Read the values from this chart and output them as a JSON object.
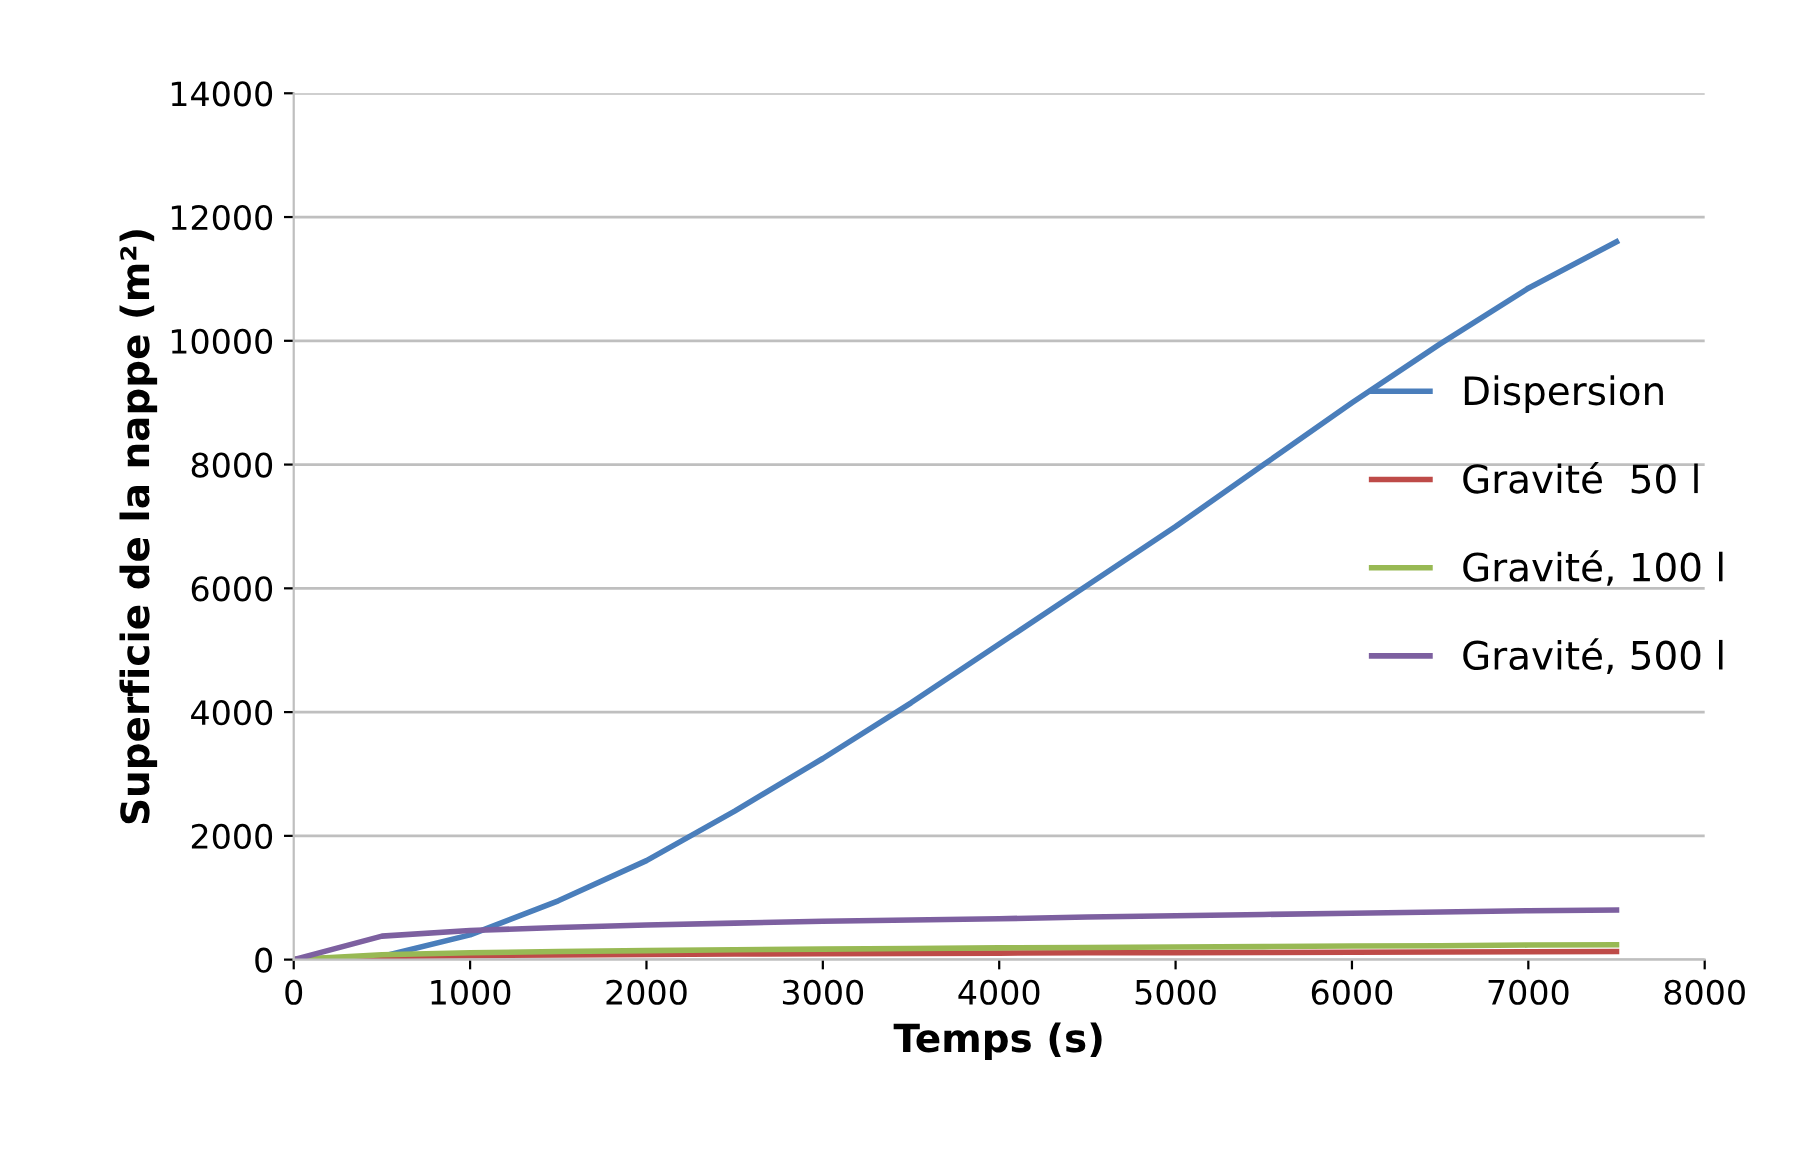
{
  "chart_data": {
    "type": "line",
    "xlabel": "Temps (s)",
    "ylabel": "Superficie de la nappe (m²)",
    "x": [
      0,
      500,
      1000,
      1500,
      2000,
      2500,
      3000,
      3500,
      4000,
      4500,
      5000,
      5500,
      6000,
      6500,
      7000,
      7500
    ],
    "series": [
      {
        "name": "Dispersion",
        "color": "#4a7ebb",
        "values": [
          0,
          50,
          400,
          950,
          1600,
          2400,
          3250,
          4150,
          5100,
          6050,
          7000,
          8000,
          9000,
          9950,
          10850,
          11600
        ]
      },
      {
        "name": "Gravité  50 l",
        "color": "#be4b48",
        "values": [
          0,
          50,
          65,
          75,
          85,
          90,
          95,
          100,
          105,
          110,
          112,
          115,
          118,
          122,
          126,
          130
        ]
      },
      {
        "name": "Gravité, 100 l",
        "color": "#98b954",
        "values": [
          0,
          80,
          110,
          130,
          145,
          160,
          170,
          180,
          190,
          195,
          205,
          210,
          220,
          225,
          235,
          240
        ]
      },
      {
        "name": "Gravité, 500 l",
        "color": "#7d60a0",
        "values": [
          0,
          380,
          470,
          520,
          560,
          590,
          620,
          640,
          660,
          690,
          710,
          730,
          750,
          770,
          790,
          800
        ]
      }
    ],
    "xlim": [
      0,
      8000
    ],
    "xticks": [
      0,
      1000,
      2000,
      3000,
      4000,
      5000,
      6000,
      7000,
      8000
    ],
    "ylim": [
      0,
      14000
    ],
    "yticks": [
      0,
      2000,
      4000,
      6000,
      8000,
      10000,
      12000,
      14000
    ],
    "grid": "y",
    "legend": "center right",
    "marker": "none",
    "line_style": "solid"
  }
}
